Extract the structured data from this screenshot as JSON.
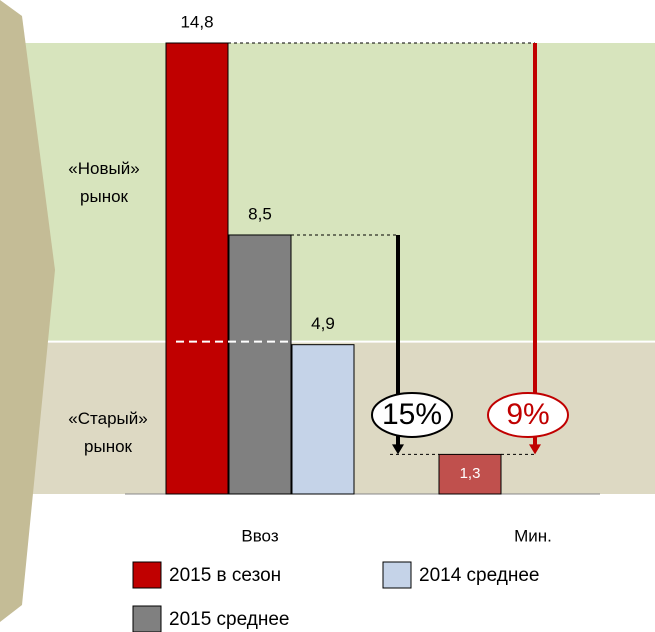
{
  "chart_data": {
    "type": "bar",
    "categories": [
      "Ввоз",
      "Мин."
    ],
    "series": [
      {
        "name": "2015 в сезон",
        "color": "#c00000",
        "point_colors": [
          "#c00000",
          "#c0504d"
        ],
        "values": [
          14.8,
          1.3
        ],
        "value_labels": [
          "14,8",
          "1,3"
        ]
      },
      {
        "name": "2015 среднее",
        "color": "#808080",
        "values": [
          8.5,
          null
        ],
        "value_labels": [
          "8,5",
          null
        ]
      },
      {
        "name": "2014 среднее",
        "color": "#c5d3e8",
        "values": [
          4.9,
          null
        ],
        "value_labels": [
          "4,9",
          null
        ]
      }
    ],
    "ylim": [
      0,
      14.8
    ],
    "threshold": 5,
    "regions": [
      "«Новый» рынок",
      "«Старый» рынок"
    ],
    "annotations": [
      "15%",
      "9%"
    ]
  }
}
